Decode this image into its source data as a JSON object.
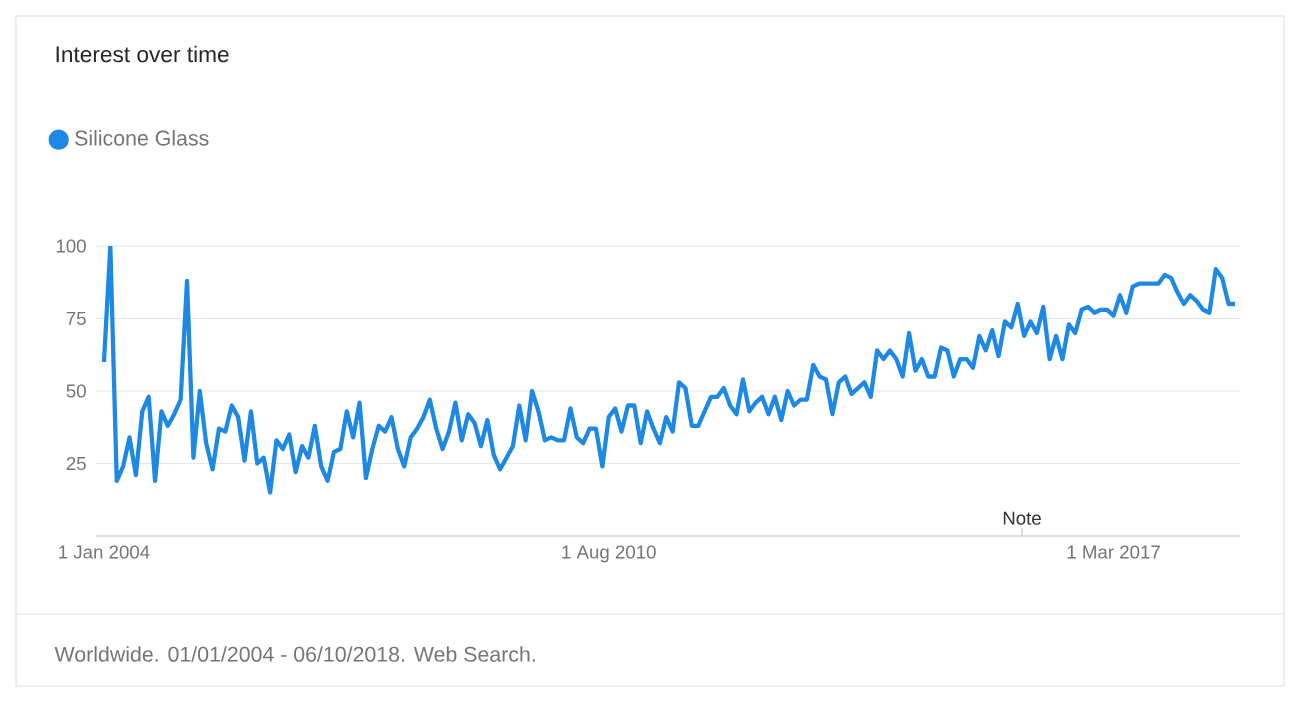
{
  "chart_data": {
    "type": "line",
    "title": "Interest over time",
    "x": [
      "2004-01",
      "2004-02",
      "2004-03",
      "2004-04",
      "2004-05",
      "2004-06",
      "2004-07",
      "2004-08",
      "2004-09",
      "2004-10",
      "2004-11",
      "2004-12",
      "2005-01",
      "2005-02",
      "2005-03",
      "2005-04",
      "2005-05",
      "2005-06",
      "2005-07",
      "2005-08",
      "2005-09",
      "2005-10",
      "2005-11",
      "2005-12",
      "2006-01",
      "2006-02",
      "2006-03",
      "2006-04",
      "2006-05",
      "2006-06",
      "2006-07",
      "2006-08",
      "2006-09",
      "2006-10",
      "2006-11",
      "2006-12",
      "2007-01",
      "2007-02",
      "2007-03",
      "2007-04",
      "2007-05",
      "2007-06",
      "2007-07",
      "2007-08",
      "2007-09",
      "2007-10",
      "2007-11",
      "2007-12",
      "2008-01",
      "2008-02",
      "2008-03",
      "2008-04",
      "2008-05",
      "2008-06",
      "2008-07",
      "2008-08",
      "2008-09",
      "2008-10",
      "2008-11",
      "2008-12",
      "2009-01",
      "2009-02",
      "2009-03",
      "2009-04",
      "2009-05",
      "2009-06",
      "2009-07",
      "2009-08",
      "2009-09",
      "2009-10",
      "2009-11",
      "2009-12",
      "2010-01",
      "2010-02",
      "2010-03",
      "2010-04",
      "2010-05",
      "2010-06",
      "2010-07",
      "2010-08",
      "2010-09",
      "2010-10",
      "2010-11",
      "2010-12",
      "2011-01",
      "2011-02",
      "2011-03",
      "2011-04",
      "2011-05",
      "2011-06",
      "2011-07",
      "2011-08",
      "2011-09",
      "2011-10",
      "2011-11",
      "2011-12",
      "2012-01",
      "2012-02",
      "2012-03",
      "2012-04",
      "2012-05",
      "2012-06",
      "2012-07",
      "2012-08",
      "2012-09",
      "2012-10",
      "2012-11",
      "2012-12",
      "2013-01",
      "2013-02",
      "2013-03",
      "2013-04",
      "2013-05",
      "2013-06",
      "2013-07",
      "2013-08",
      "2013-09",
      "2013-10",
      "2013-11",
      "2013-12",
      "2014-01",
      "2014-02",
      "2014-03",
      "2014-04",
      "2014-05",
      "2014-06",
      "2014-07",
      "2014-08",
      "2014-09",
      "2014-10",
      "2014-11",
      "2014-12",
      "2015-01",
      "2015-02",
      "2015-03",
      "2015-04",
      "2015-05",
      "2015-06",
      "2015-07",
      "2015-08",
      "2015-09",
      "2015-10",
      "2015-11",
      "2015-12",
      "2016-01",
      "2016-02",
      "2016-03",
      "2016-04",
      "2016-05",
      "2016-06",
      "2016-07",
      "2016-08",
      "2016-09",
      "2016-10",
      "2016-11",
      "2016-12",
      "2017-01",
      "2017-02",
      "2017-03",
      "2017-04",
      "2017-05",
      "2017-06",
      "2017-07",
      "2017-08",
      "2017-09",
      "2017-10",
      "2017-11",
      "2017-12",
      "2018-01",
      "2018-02",
      "2018-03",
      "2018-04",
      "2018-05",
      "2018-06",
      "2018-07",
      "2018-08",
      "2018-09",
      "2018-10"
    ],
    "series": [
      {
        "name": "Silicone Glass",
        "color": "#1e88e5",
        "values": [
          60,
          100,
          19,
          24,
          34,
          21,
          43,
          48,
          19,
          43,
          38,
          42,
          47,
          88,
          27,
          50,
          32,
          23,
          37,
          36,
          45,
          41,
          26,
          43,
          25,
          27,
          15,
          33,
          30,
          35,
          22,
          31,
          27,
          38,
          24,
          19,
          29,
          30,
          43,
          34,
          46,
          20,
          30,
          38,
          36,
          41,
          30,
          24,
          34,
          37,
          41,
          47,
          37,
          30,
          36,
          46,
          33,
          42,
          39,
          31,
          40,
          28,
          23,
          27,
          31,
          45,
          33,
          50,
          43,
          33,
          34,
          33,
          33,
          44,
          34,
          32,
          37,
          37,
          24,
          41,
          44,
          36,
          45,
          45,
          32,
          43,
          37,
          32,
          41,
          36,
          53,
          51,
          38,
          38,
          43,
          48,
          48,
          51,
          45,
          42,
          54,
          43,
          46,
          48,
          42,
          48,
          40,
          50,
          45,
          47,
          47,
          59,
          55,
          54,
          42,
          53,
          55,
          49,
          51,
          53,
          48,
          64,
          61,
          64,
          61,
          55,
          70,
          57,
          61,
          55,
          55,
          65,
          64,
          55,
          61,
          61,
          58,
          69,
          64,
          71,
          62,
          74,
          72,
          80,
          69,
          74,
          70,
          79,
          61,
          69,
          61,
          73,
          70,
          78,
          79,
          77,
          78,
          78,
          76,
          83,
          77,
          86,
          87,
          87,
          87,
          87,
          90,
          89,
          84,
          80,
          83,
          81,
          78,
          77,
          92,
          89,
          80,
          80
        ]
      }
    ],
    "xlim": [
      "2003-11-24",
      "2018-10-25"
    ],
    "xticks": [
      {
        "value": "2004-01-01",
        "label": "1 Jan 2004"
      },
      {
        "value": "2010-08-01",
        "label": "1 Aug 2010"
      },
      {
        "value": "2017-03-01",
        "label": "1 Mar 2017"
      }
    ],
    "ylim": [
      0,
      100
    ],
    "yticks": [
      25,
      50,
      75,
      100
    ],
    "grid": "y",
    "legend": "top left",
    "marker": "none",
    "line_style": "solid",
    "annotations": [
      "Note",
      "Worldwide. 01/01/2004 - 06/10/2018. Web Search."
    ]
  }
}
